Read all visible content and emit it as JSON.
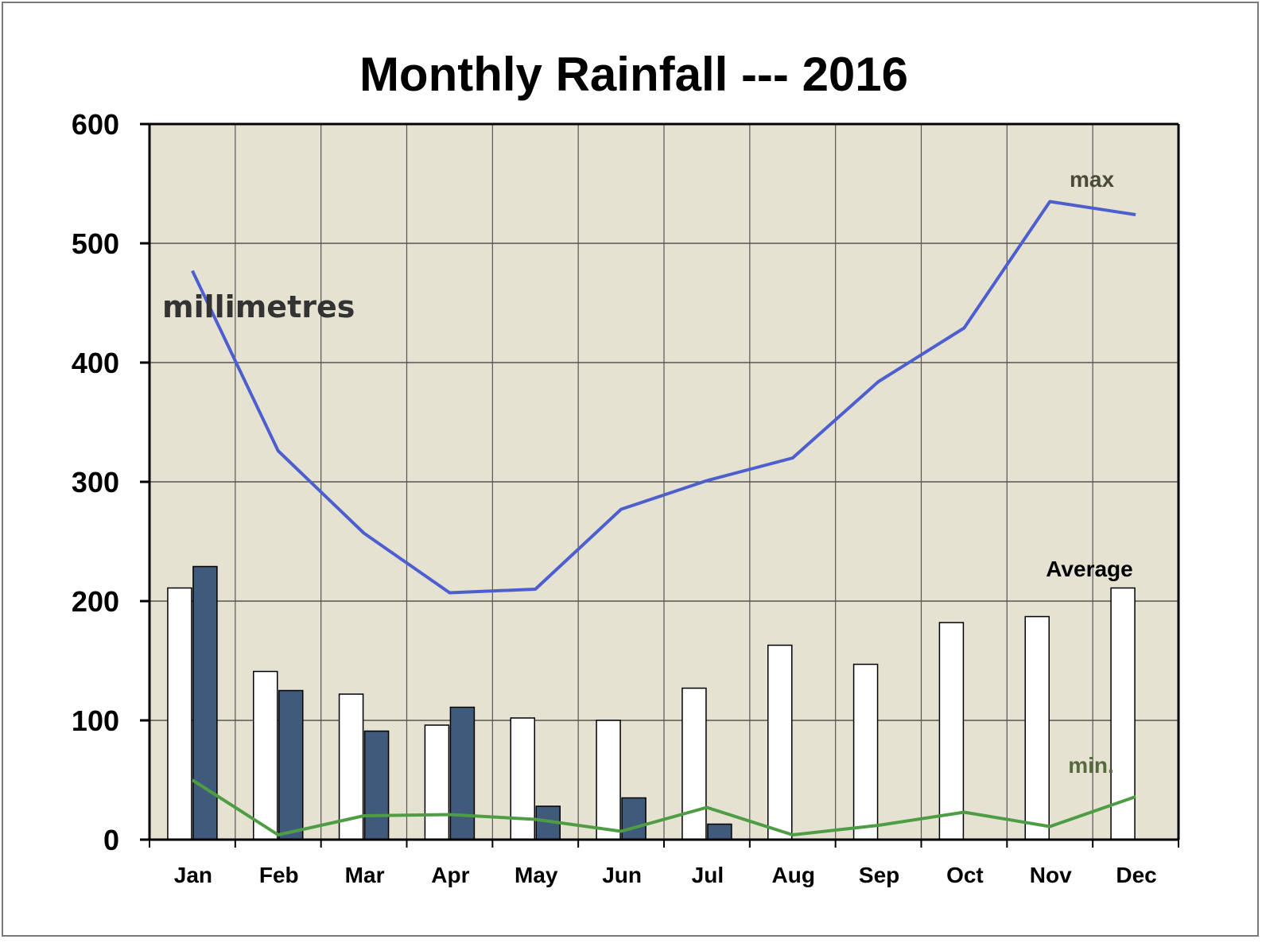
{
  "chart_data": {
    "type": "bar",
    "title": "Monthly Rainfall --- 2016",
    "unit_label": "millimetres",
    "categories": [
      "Jan",
      "Feb",
      "Mar",
      "Apr",
      "May",
      "Jun",
      "Jul",
      "Aug",
      "Sep",
      "Oct",
      "Nov",
      "Dec"
    ],
    "ylim": [
      0,
      600
    ],
    "y_ticks": [
      "0",
      "100",
      "200",
      "300",
      "400",
      "500",
      "600"
    ],
    "grid": true,
    "bar_series": [
      {
        "name": "Average",
        "color": "#ffffff",
        "values": [
          211,
          141,
          122,
          96,
          102,
          100,
          127,
          163,
          147,
          182,
          187,
          211
        ]
      },
      {
        "name": "",
        "color": "#3f5a7a",
        "values": [
          229,
          125,
          91,
          111,
          28,
          35,
          13,
          0,
          0,
          0,
          0,
          0
        ]
      }
    ],
    "line_series": [
      {
        "name": "max",
        "color": "#4d5fcf",
        "values": [
          477,
          326,
          257,
          207,
          210,
          277,
          301,
          320,
          384,
          429,
          535,
          524
        ]
      },
      {
        "name": "min.",
        "color": "#4e9d45",
        "values": [
          50,
          4,
          20,
          21,
          17,
          7,
          27,
          4,
          12,
          23,
          11,
          36
        ]
      }
    ],
    "colors": {
      "plot_background": "#e6e2d2",
      "grid": "#555555",
      "min_label": "#556b3f",
      "max_label": "#4a4a3a"
    }
  }
}
